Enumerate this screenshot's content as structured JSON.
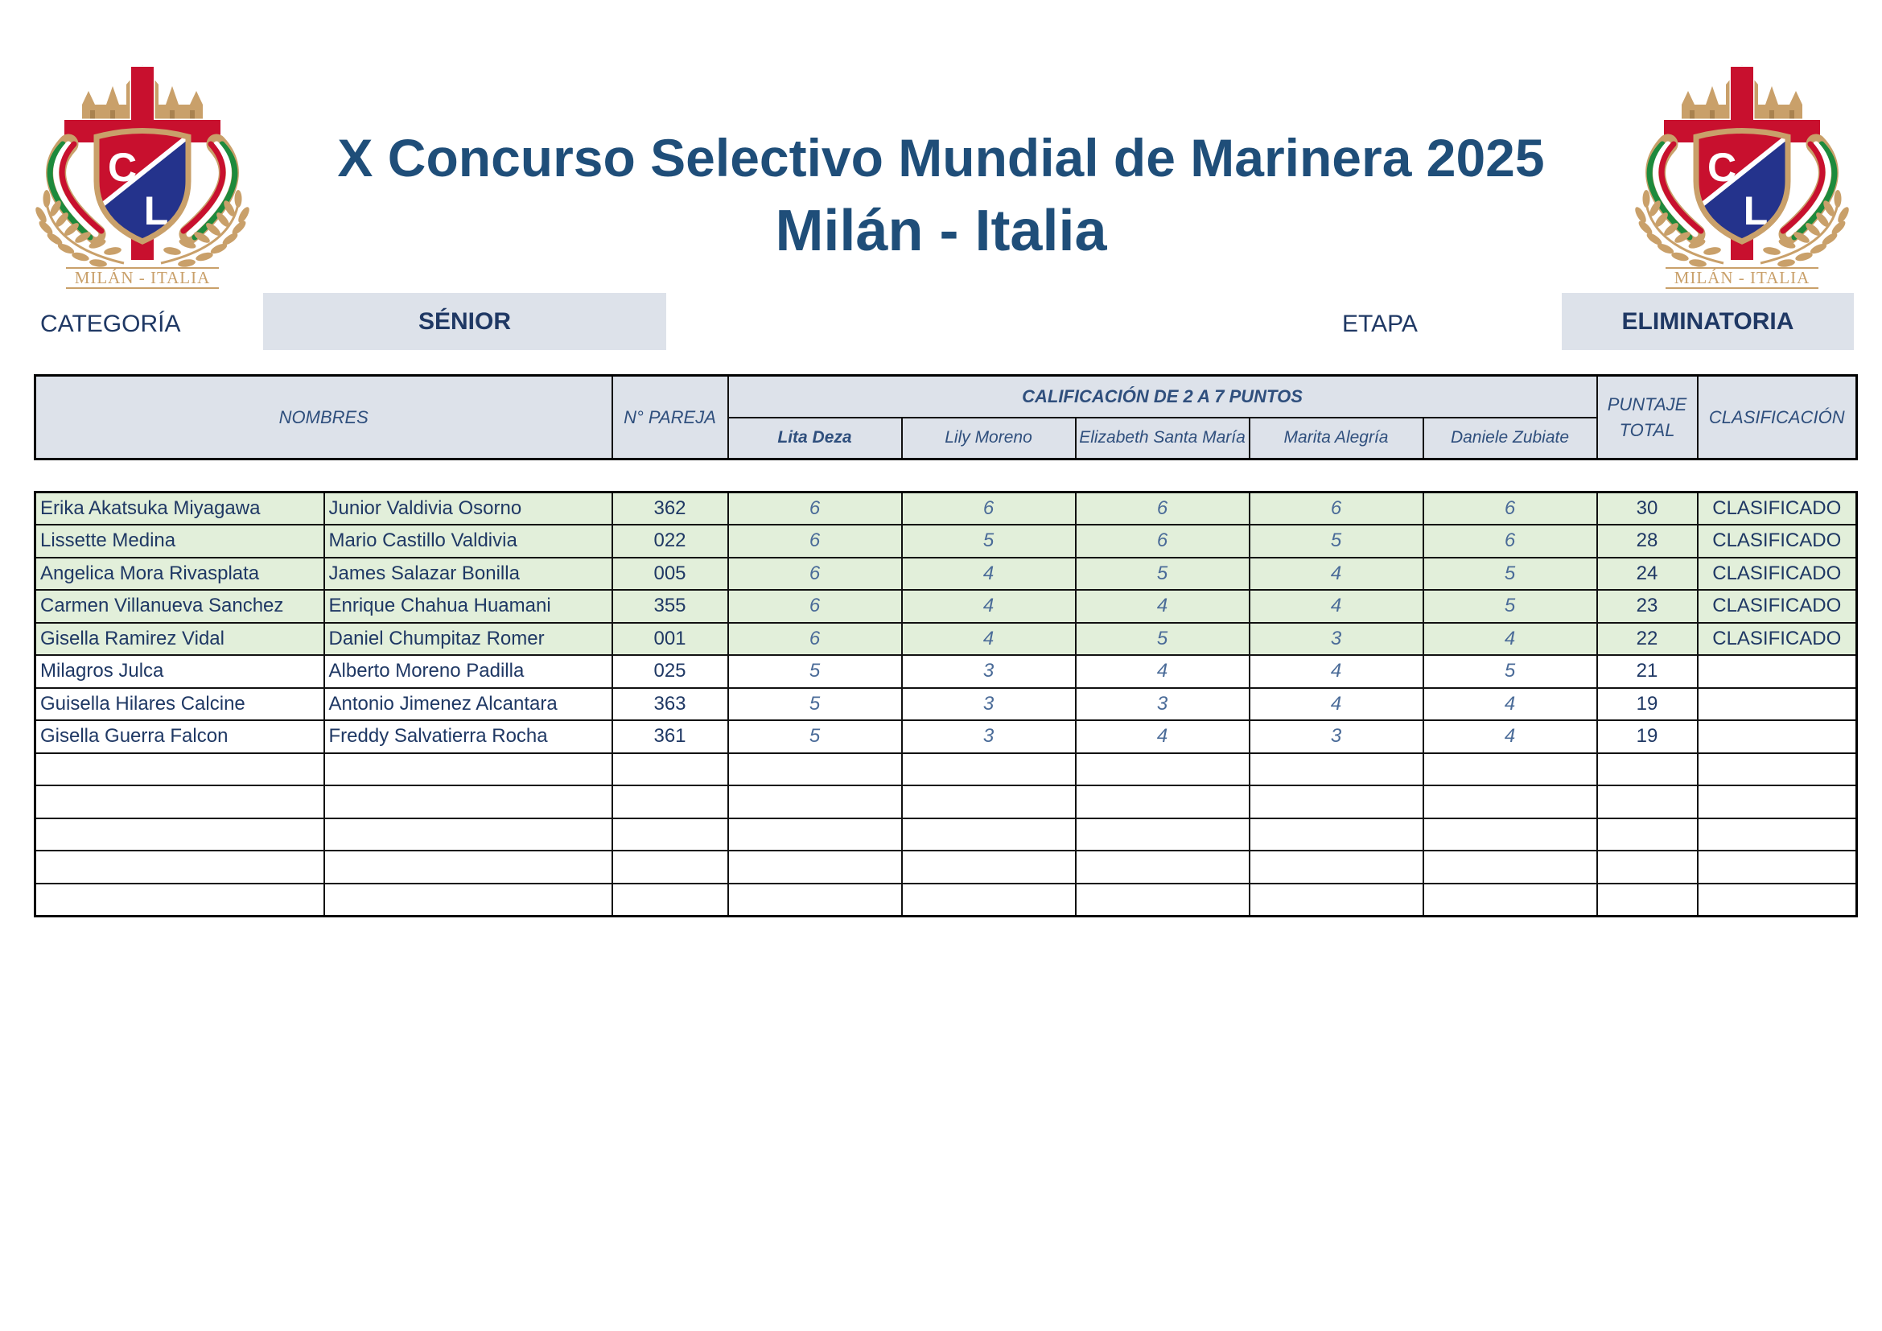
{
  "header": {
    "title": "X Concurso Selectivo Mundial de Marinera 2025",
    "subtitle": "Milán - Italia"
  },
  "logo": {
    "caption": "MILÁN - ITALIA",
    "letters": [
      "C",
      "L"
    ]
  },
  "category": {
    "label": "CATEGORÍA",
    "value": "SÉNIOR"
  },
  "stage": {
    "label": "ETAPA",
    "value": "ELIMINATORIA"
  },
  "table": {
    "headers": {
      "names": "NOMBRES",
      "pair_number": "N° PAREJA",
      "scoring": "CALIFICACIÓN DE 2 A 7 PUNTOS",
      "total": "PUNTAJE TOTAL",
      "classification": "CLASIFICACIÓN"
    },
    "judges": [
      "Lita Deza",
      "Lily Moreno",
      "Elizabeth Santa María",
      "Marita Alegría",
      "Daniele Zubiate"
    ],
    "rows": [
      {
        "partner_a": "Erika Akatsuka Miyagawa",
        "partner_b": "Junior Valdivia Osorno",
        "pair": "362",
        "scores": [
          6,
          6,
          6,
          6,
          6
        ],
        "total": 30,
        "status": "CLASIFICADO"
      },
      {
        "partner_a": "Lissette Medina",
        "partner_b": "Mario Castillo Valdivia",
        "pair": "022",
        "scores": [
          6,
          5,
          6,
          5,
          6
        ],
        "total": 28,
        "status": "CLASIFICADO"
      },
      {
        "partner_a": "Angelica Mora Rivasplata",
        "partner_b": "James Salazar Bonilla",
        "pair": "005",
        "scores": [
          6,
          4,
          5,
          4,
          5
        ],
        "total": 24,
        "status": "CLASIFICADO"
      },
      {
        "partner_a": "Carmen Villanueva Sanchez",
        "partner_b": "Enrique Chahua Huamani",
        "pair": "355",
        "scores": [
          6,
          4,
          4,
          4,
          5
        ],
        "total": 23,
        "status": "CLASIFICADO"
      },
      {
        "partner_a": "Gisella Ramirez Vidal",
        "partner_b": "Daniel Chumpitaz Romer",
        "pair": "001",
        "scores": [
          6,
          4,
          5,
          3,
          4
        ],
        "total": 22,
        "status": "CLASIFICADO"
      },
      {
        "partner_a": "Milagros Julca",
        "partner_b": "Alberto Moreno Padilla",
        "pair": "025",
        "scores": [
          5,
          3,
          4,
          4,
          5
        ],
        "total": 21
      },
      {
        "partner_a": "Guisella Hilares Calcine",
        "partner_b": "Antonio Jimenez Alcantara",
        "pair": "363",
        "scores": [
          5,
          3,
          3,
          4,
          4
        ],
        "total": 19
      },
      {
        "partner_a": "Gisella Guerra Falcon",
        "partner_b": "Freddy Salvatierra Rocha",
        "pair": "361",
        "scores": [
          5,
          3,
          4,
          3,
          4
        ],
        "total": 19
      }
    ]
  },
  "colors": {
    "title": "#1f4e79",
    "text": "#1f3864",
    "header_bg": "#dde2ea",
    "qualified_bg": "#e2efda",
    "score_text": "#4a6b98"
  }
}
